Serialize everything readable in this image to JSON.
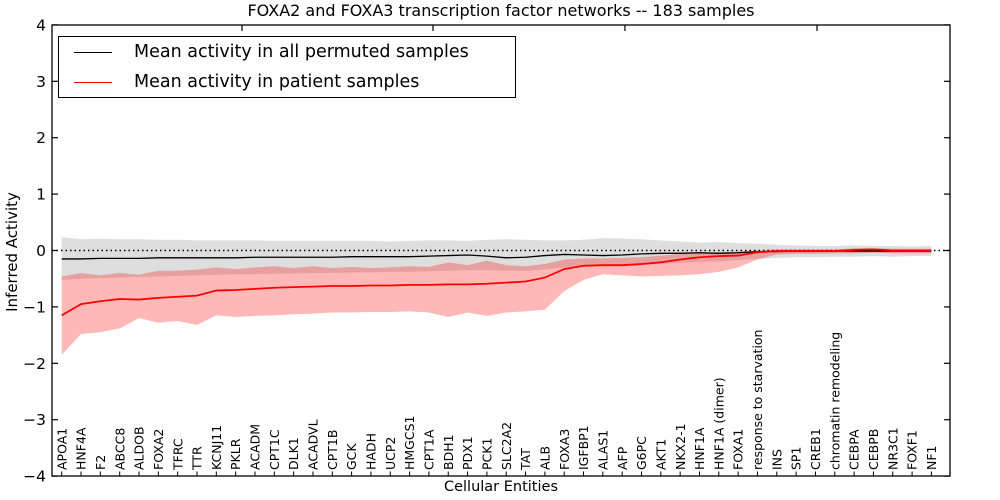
{
  "chart_data": {
    "type": "line",
    "title": "FOXA2 and FOXA3 transcription factor networks -- 183 samples",
    "xlabel": "Cellular Entities",
    "ylabel": "Inferred Activity",
    "ylim": [
      -4,
      4
    ],
    "yticks": [
      4,
      3,
      2,
      1,
      0,
      -1,
      -2,
      -3,
      -4
    ],
    "zero_line": {
      "value": 0,
      "style": "dotted",
      "color": "#000000"
    },
    "legend_position": "upper left",
    "grid": false,
    "categories": [
      "APOA1",
      "HNF4A",
      "F2",
      "ABCC8",
      "ALDOB",
      "FOXA2",
      "TFRC",
      "TTR",
      "KCNJ11",
      "PKLR",
      "ACADM",
      "CPT1C",
      "DLK1",
      "ACADVL",
      "CPT1B",
      "GCK",
      "HADH",
      "UCP2",
      "HMGCS1",
      "CPT1A",
      "BDH1",
      "PDX1",
      "PCK1",
      "SLC2A2",
      "TAT",
      "ALB",
      "FOXA3",
      "IGFBP1",
      "ALAS1",
      "AFP",
      "G6PC",
      "AKT1",
      "NKX2-1",
      "HNF1A",
      "HNF1A (dimer)",
      "FOXA1",
      "response to starvation",
      "INS",
      "SP1",
      "CREB1",
      "chromatin remodeling",
      "CEBPA",
      "CEBPB",
      "NR3C1",
      "FOXF1",
      "NF1"
    ],
    "series": [
      {
        "name": "Mean activity in all permuted samples",
        "color": "#000000",
        "line_width": 1.3,
        "values": [
          -0.15,
          -0.15,
          -0.14,
          -0.14,
          -0.14,
          -0.13,
          -0.13,
          -0.13,
          -0.13,
          -0.13,
          -0.12,
          -0.12,
          -0.12,
          -0.12,
          -0.12,
          -0.11,
          -0.11,
          -0.11,
          -0.11,
          -0.1,
          -0.09,
          -0.08,
          -0.1,
          -0.13,
          -0.12,
          -0.09,
          -0.07,
          -0.08,
          -0.09,
          -0.08,
          -0.06,
          -0.05,
          -0.05,
          -0.04,
          -0.05,
          -0.04,
          -0.02,
          -0.02,
          -0.01,
          -0.01,
          -0.01,
          -0.01,
          -0.01,
          -0.01,
          -0.01,
          -0.01
        ],
        "band_color": "rgba(0,0,0,0.13)",
        "band_upper": [
          0.24,
          0.2,
          0.21,
          0.2,
          0.2,
          0.19,
          0.19,
          0.18,
          0.18,
          0.18,
          0.18,
          0.17,
          0.17,
          0.17,
          0.17,
          0.17,
          0.17,
          0.16,
          0.17,
          0.18,
          0.18,
          0.17,
          0.19,
          0.2,
          0.19,
          0.18,
          0.18,
          0.19,
          0.22,
          0.21,
          0.2,
          0.18,
          0.16,
          0.14,
          0.15,
          0.13,
          0.12,
          0.1,
          0.09,
          0.08,
          0.08,
          0.09,
          0.08,
          0.08,
          0.07,
          0.08
        ],
        "band_lower": [
          -0.52,
          -0.5,
          -0.49,
          -0.48,
          -0.47,
          -0.46,
          -0.45,
          -0.44,
          -0.43,
          -0.42,
          -0.42,
          -0.41,
          -0.41,
          -0.4,
          -0.4,
          -0.39,
          -0.39,
          -0.38,
          -0.38,
          -0.37,
          -0.36,
          -0.35,
          -0.35,
          -0.36,
          -0.36,
          -0.34,
          -0.3,
          -0.28,
          -0.28,
          -0.27,
          -0.26,
          -0.24,
          -0.22,
          -0.2,
          -0.19,
          -0.17,
          -0.15,
          -0.13,
          -0.12,
          -0.12,
          -0.11,
          -0.11,
          -0.1,
          -0.11,
          -0.1,
          -0.1
        ]
      },
      {
        "name": "Mean activity in patient samples",
        "color": "#ff0000",
        "line_width": 1.8,
        "values": [
          -1.15,
          -0.95,
          -0.9,
          -0.86,
          -0.87,
          -0.84,
          -0.82,
          -0.8,
          -0.71,
          -0.7,
          -0.68,
          -0.66,
          -0.65,
          -0.64,
          -0.63,
          -0.63,
          -0.62,
          -0.62,
          -0.61,
          -0.61,
          -0.6,
          -0.6,
          -0.59,
          -0.57,
          -0.55,
          -0.48,
          -0.33,
          -0.27,
          -0.26,
          -0.26,
          -0.24,
          -0.21,
          -0.16,
          -0.12,
          -0.1,
          -0.09,
          -0.03,
          -0.01,
          -0.01,
          -0.01,
          -0.01,
          0.01,
          0.02,
          0.0,
          0.0,
          0.0
        ],
        "band_color": "rgba(255,0,0,0.28)",
        "band_upper": [
          -0.46,
          -0.4,
          -0.44,
          -0.4,
          -0.43,
          -0.36,
          -0.36,
          -0.34,
          -0.3,
          -0.33,
          -0.3,
          -0.28,
          -0.31,
          -0.28,
          -0.31,
          -0.29,
          -0.31,
          -0.3,
          -0.28,
          -0.29,
          -0.21,
          -0.26,
          -0.18,
          -0.26,
          -0.28,
          -0.24,
          -0.16,
          -0.14,
          -0.14,
          -0.13,
          -0.12,
          -0.09,
          -0.06,
          -0.04,
          -0.03,
          -0.02,
          0.0,
          0.02,
          0.02,
          0.02,
          0.02,
          0.04,
          0.04,
          0.03,
          0.03,
          0.03
        ],
        "band_lower": [
          -1.85,
          -1.48,
          -1.45,
          -1.38,
          -1.2,
          -1.28,
          -1.25,
          -1.32,
          -1.15,
          -1.18,
          -1.16,
          -1.15,
          -1.13,
          -1.12,
          -1.1,
          -1.1,
          -1.09,
          -1.09,
          -1.08,
          -1.1,
          -1.18,
          -1.1,
          -1.16,
          -1.1,
          -1.08,
          -1.05,
          -0.72,
          -0.52,
          -0.42,
          -0.44,
          -0.46,
          -0.45,
          -0.44,
          -0.42,
          -0.38,
          -0.3,
          -0.16,
          -0.07,
          -0.06,
          -0.06,
          -0.05,
          -0.05,
          -0.04,
          -0.05,
          -0.05,
          -0.05
        ]
      }
    ]
  }
}
